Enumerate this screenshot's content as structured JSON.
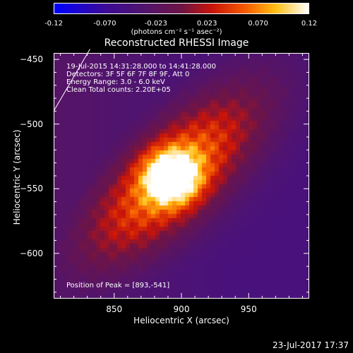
{
  "colorbar": {
    "ticks": [
      "-0.12",
      "-0.070",
      "-0.023",
      "0.023",
      "0.070",
      "0.12"
    ],
    "unit": "(photons cm⁻² s⁻¹ asec⁻²)",
    "min": -0.12,
    "max": 0.12
  },
  "annotations": {
    "time_range": "19-Jul-2015 14:31:28.000 to 14:41:28.000",
    "detectors": "Detectors: 3F 5F 6F 7F 8F 9F, Att 0",
    "energy": "Energy Range: 3.0 - 6.0 keV",
    "clean": "Clean     Total counts: 2.20E+05",
    "peak": "Position of Peak = [893,-541]"
  },
  "footer": {
    "date": "23-Jul-2017 17:37"
  },
  "chart_data": {
    "type": "heatmap",
    "title": "Reconstructed RHESSI Image",
    "xlabel": "Heliocentric X (arcsec)",
    "ylabel": "Heliocentric Y (arcsec)",
    "xlim": [
      805,
      995
    ],
    "ylim": [
      -635,
      -445
    ],
    "xticks": [
      850,
      900,
      950
    ],
    "yticks": [
      -450,
      -500,
      -550,
      -600
    ],
    "colorbar_range": [
      -0.12,
      0.12
    ],
    "colormap": "rainbow-like (blue-purple-red-orange-yellow-white)",
    "peak_position": [
      893,
      -541
    ],
    "peak_value": 0.12,
    "limb_line": true,
    "colors": {
      "background": "#000000",
      "text": "#ffffff"
    }
  }
}
